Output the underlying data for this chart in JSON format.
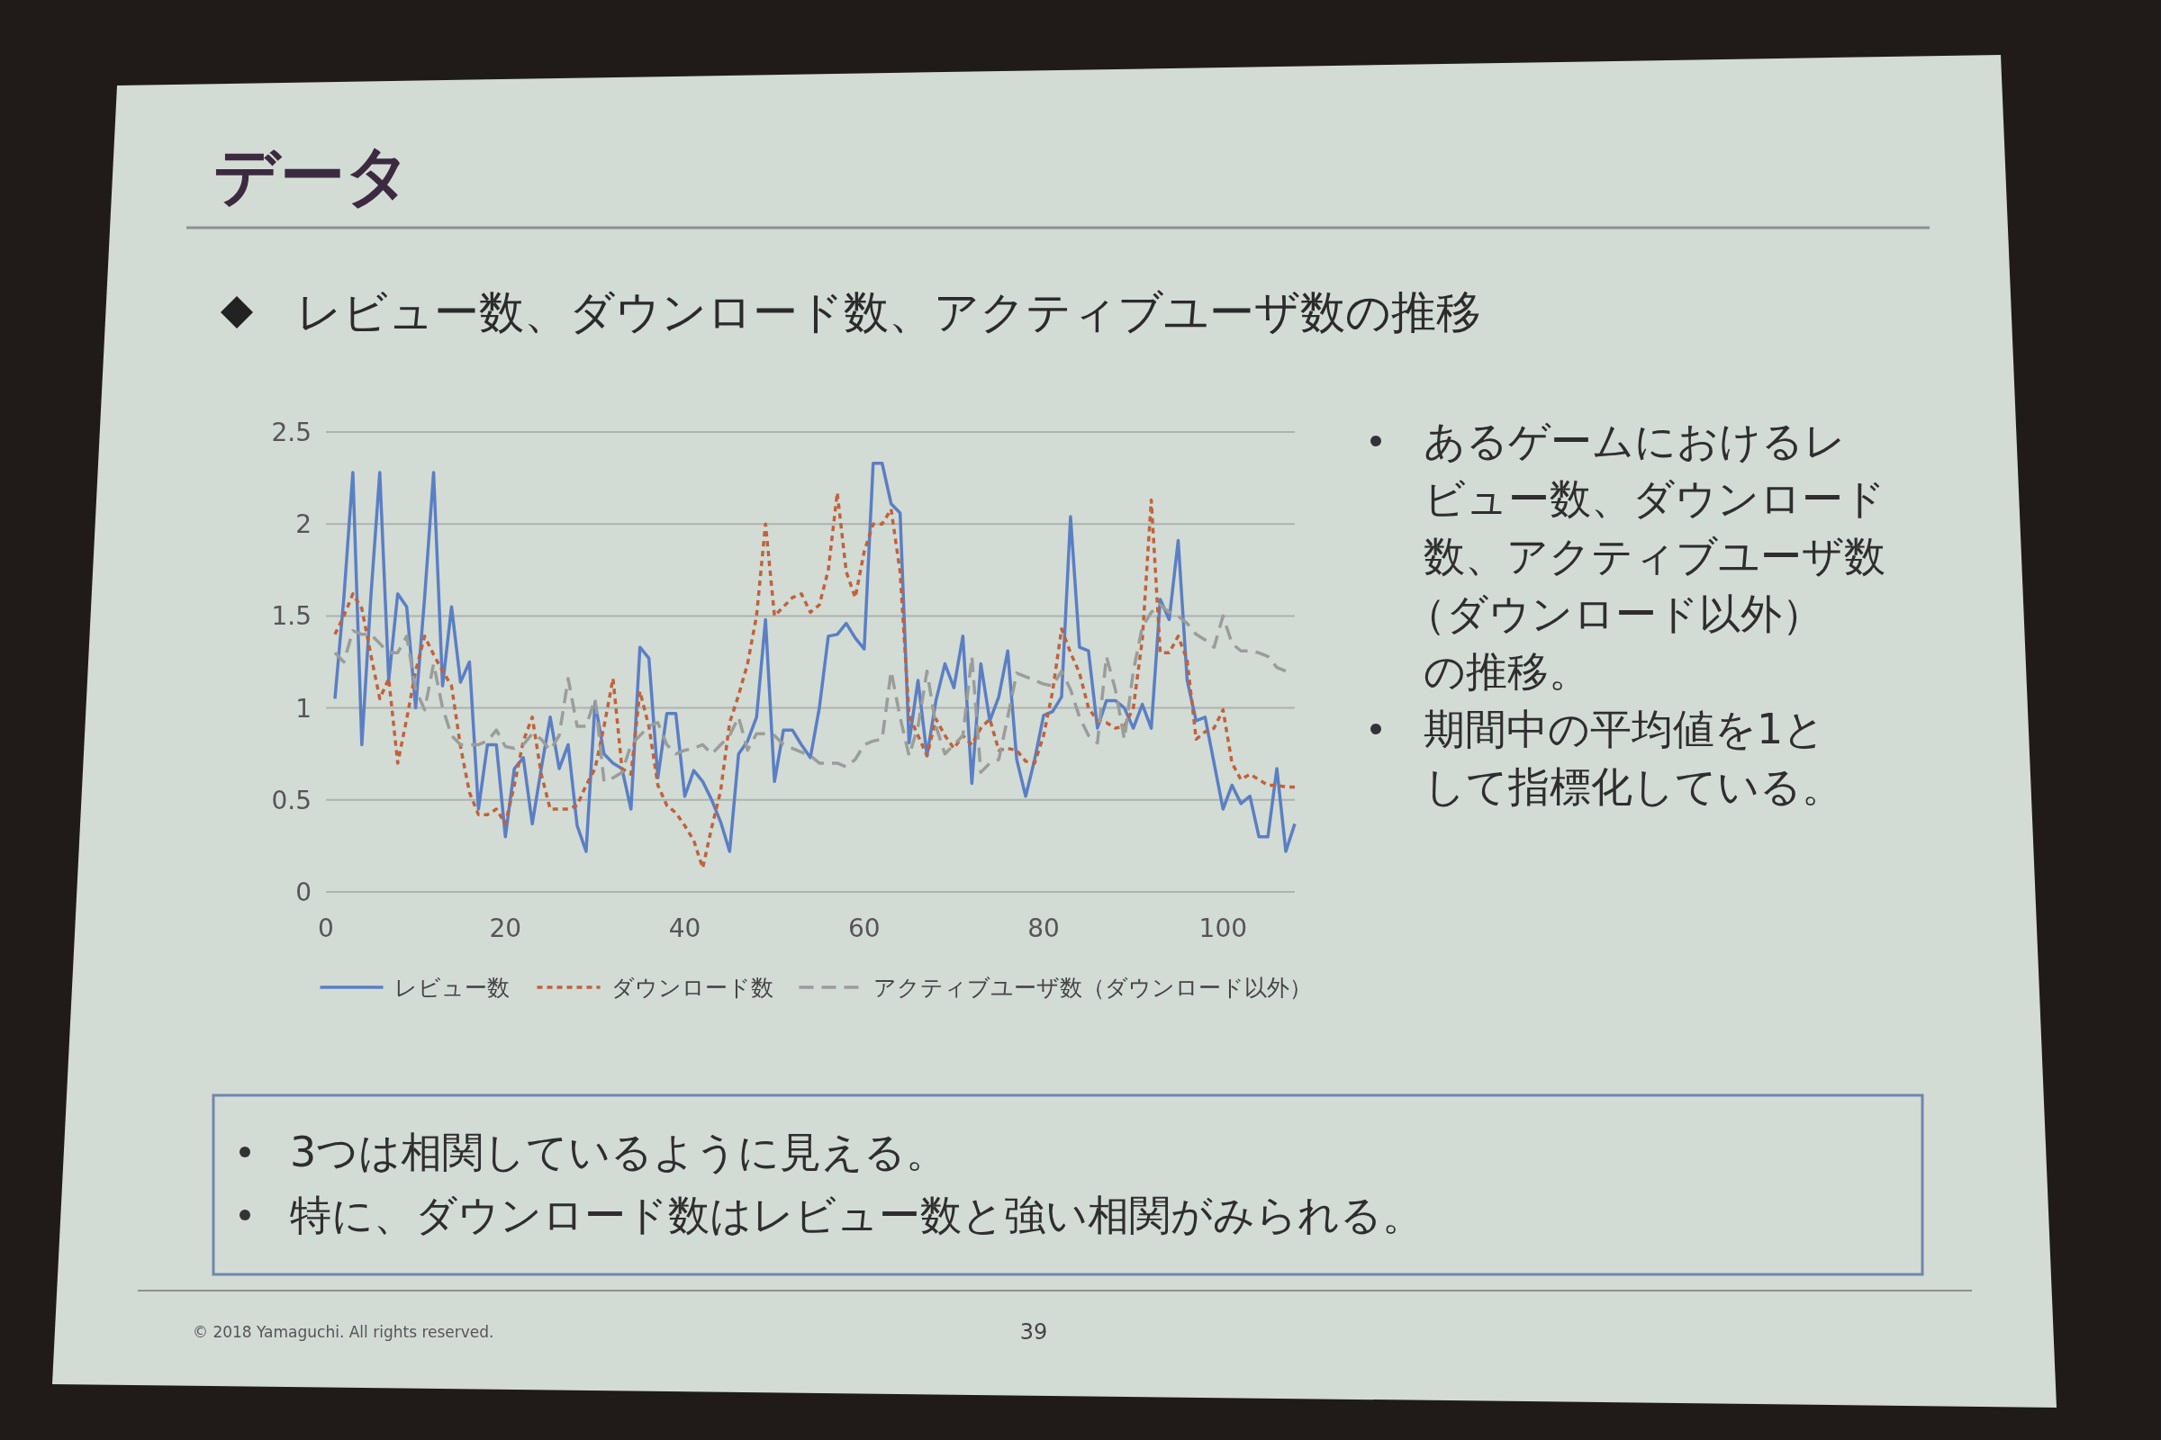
{
  "chart_data": {
    "type": "line",
    "title": "データ",
    "subtitle": "レビュー数、ダウンロード数、アクティブユーザ数の推移",
    "annotations": [
      "あるゲームにおけるレビュー数、ダウンロード数、アクティブユーザ数（ダウンロード以外）の推移。",
      "期間中の平均値を1として指標化している。",
      "3つは相関しているように見える。",
      "特に、ダウンロード数はレビュー数と強い相関がみられる。",
      "© 2018 Yamaguchi. All rights reserved.",
      "39"
    ],
    "x": [
      1,
      2,
      3,
      4,
      5,
      6,
      7,
      8,
      9,
      10,
      11,
      12,
      13,
      14,
      15,
      16,
      17,
      18,
      19,
      20,
      21,
      22,
      23,
      24,
      25,
      26,
      27,
      28,
      29,
      30,
      31,
      32,
      33,
      34,
      35,
      36,
      37,
      38,
      39,
      40,
      41,
      42,
      43,
      44,
      45,
      46,
      47,
      48,
      49,
      50,
      51,
      52,
      53,
      54,
      55,
      56,
      57,
      58,
      59,
      60,
      61,
      62,
      63,
      64,
      65,
      66,
      67,
      68,
      69,
      70,
      71,
      72,
      73,
      74,
      75,
      76,
      77,
      78,
      79,
      80,
      81,
      82,
      83,
      84,
      85,
      86,
      87,
      88,
      89,
      90,
      91,
      92,
      93,
      94,
      95,
      96,
      97,
      98,
      99,
      100,
      101,
      102,
      103,
      104,
      105,
      106,
      107,
      108
    ],
    "series": [
      {
        "name": "レビュー数",
        "color": "#5b7fc4",
        "line_style": "solid",
        "values": [
          1.05,
          1.6,
          2.28,
          0.8,
          1.6,
          2.28,
          1.15,
          1.62,
          1.55,
          1.0,
          1.6,
          2.28,
          1.12,
          1.55,
          1.14,
          1.25,
          0.45,
          0.8,
          0.8,
          0.3,
          0.67,
          0.73,
          0.37,
          0.67,
          0.95,
          0.67,
          0.8,
          0.36,
          0.22,
          1.03,
          0.75,
          0.7,
          0.67,
          0.45,
          1.33,
          1.27,
          0.62,
          0.97,
          0.97,
          0.52,
          0.66,
          0.6,
          0.5,
          0.38,
          0.22,
          0.75,
          0.82,
          0.95,
          1.48,
          0.6,
          0.88,
          0.88,
          0.8,
          0.73,
          1.0,
          1.39,
          1.4,
          1.46,
          1.38,
          1.32,
          2.33,
          2.33,
          2.11,
          2.06,
          0.81,
          1.15,
          0.74,
          1.04,
          1.24,
          1.11,
          1.39,
          0.59,
          1.24,
          0.93,
          1.06,
          1.31,
          0.72,
          0.52,
          0.72,
          0.96,
          0.98,
          1.06,
          2.04,
          1.33,
          1.31,
          0.89,
          1.04,
          1.04,
          1.0,
          0.89,
          1.02,
          0.89,
          1.59,
          1.48,
          1.91,
          1.15,
          0.93,
          0.95,
          0.7,
          0.45,
          0.58,
          0.48,
          0.52,
          0.3,
          0.3,
          0.67,
          0.22,
          0.37
        ]
      },
      {
        "name": "ダウンロード数",
        "color": "#c0623c",
        "line_style": "dotted",
        "values": [
          1.4,
          1.5,
          1.62,
          1.54,
          1.29,
          1.05,
          1.16,
          0.7,
          0.94,
          1.2,
          1.39,
          1.29,
          1.2,
          1.12,
          0.79,
          0.54,
          0.42,
          0.42,
          0.45,
          0.37,
          0.58,
          0.82,
          0.95,
          0.64,
          0.45,
          0.45,
          0.45,
          0.47,
          0.58,
          0.67,
          0.9,
          1.16,
          0.67,
          0.64,
          1.09,
          0.9,
          0.58,
          0.47,
          0.43,
          0.36,
          0.28,
          0.13,
          0.35,
          0.55,
          0.92,
          1.07,
          1.24,
          1.5,
          2.0,
          1.5,
          1.55,
          1.6,
          1.62,
          1.52,
          1.56,
          1.75,
          2.17,
          1.74,
          1.6,
          1.85,
          2.0,
          2.0,
          2.08,
          1.74,
          0.96,
          0.85,
          0.74,
          0.94,
          0.85,
          0.78,
          0.85,
          0.8,
          0.89,
          0.94,
          0.77,
          0.78,
          0.77,
          0.71,
          0.7,
          0.85,
          1.09,
          1.43,
          1.3,
          1.19,
          1.0,
          0.93,
          0.92,
          0.89,
          0.9,
          1.0,
          1.37,
          2.13,
          1.3,
          1.3,
          1.39,
          1.26,
          0.83,
          0.87,
          0.89,
          0.99,
          0.7,
          0.61,
          0.64,
          0.61,
          0.58,
          0.58,
          0.57,
          0.57
        ]
      },
      {
        "name": "アクティブユーザ数（ダウンロード以外）",
        "color": "#9a9d9a",
        "line_style": "dashed",
        "values": [
          1.3,
          1.25,
          1.42,
          1.4,
          1.4,
          1.35,
          1.3,
          1.3,
          1.39,
          1.1,
          0.99,
          1.24,
          1.0,
          0.85,
          0.8,
          0.8,
          0.8,
          0.82,
          0.88,
          0.79,
          0.78,
          0.8,
          0.86,
          0.83,
          0.77,
          0.85,
          1.16,
          0.9,
          0.9,
          1.05,
          0.6,
          0.62,
          0.65,
          0.8,
          0.85,
          0.9,
          0.92,
          0.8,
          0.75,
          0.77,
          0.78,
          0.8,
          0.75,
          0.8,
          0.85,
          0.95,
          0.77,
          0.86,
          0.86,
          0.85,
          0.8,
          0.78,
          0.76,
          0.74,
          0.7,
          0.7,
          0.7,
          0.68,
          0.72,
          0.8,
          0.82,
          0.83,
          1.2,
          0.95,
          0.74,
          0.9,
          1.2,
          0.9,
          0.75,
          0.8,
          0.85,
          1.28,
          0.65,
          0.7,
          0.72,
          0.95,
          1.19,
          1.17,
          1.15,
          1.13,
          1.12,
          1.2,
          1.1,
          0.95,
          0.85,
          0.81,
          1.28,
          1.1,
          0.83,
          1.2,
          1.44,
          1.52,
          1.56,
          1.52,
          1.5,
          1.46,
          1.4,
          1.37,
          1.33,
          1.5,
          1.35,
          1.31,
          1.31,
          1.3,
          1.28,
          1.22,
          1.2,
          null
        ]
      }
    ],
    "xlim": [
      0,
      108
    ],
    "ylim": [
      0,
      2.5
    ],
    "xticks": [
      0,
      20,
      40,
      60,
      80,
      100
    ],
    "yticks": [
      0,
      0.5,
      1,
      1.5,
      2,
      2.5
    ],
    "grid": "y",
    "legend": "bottom"
  }
}
